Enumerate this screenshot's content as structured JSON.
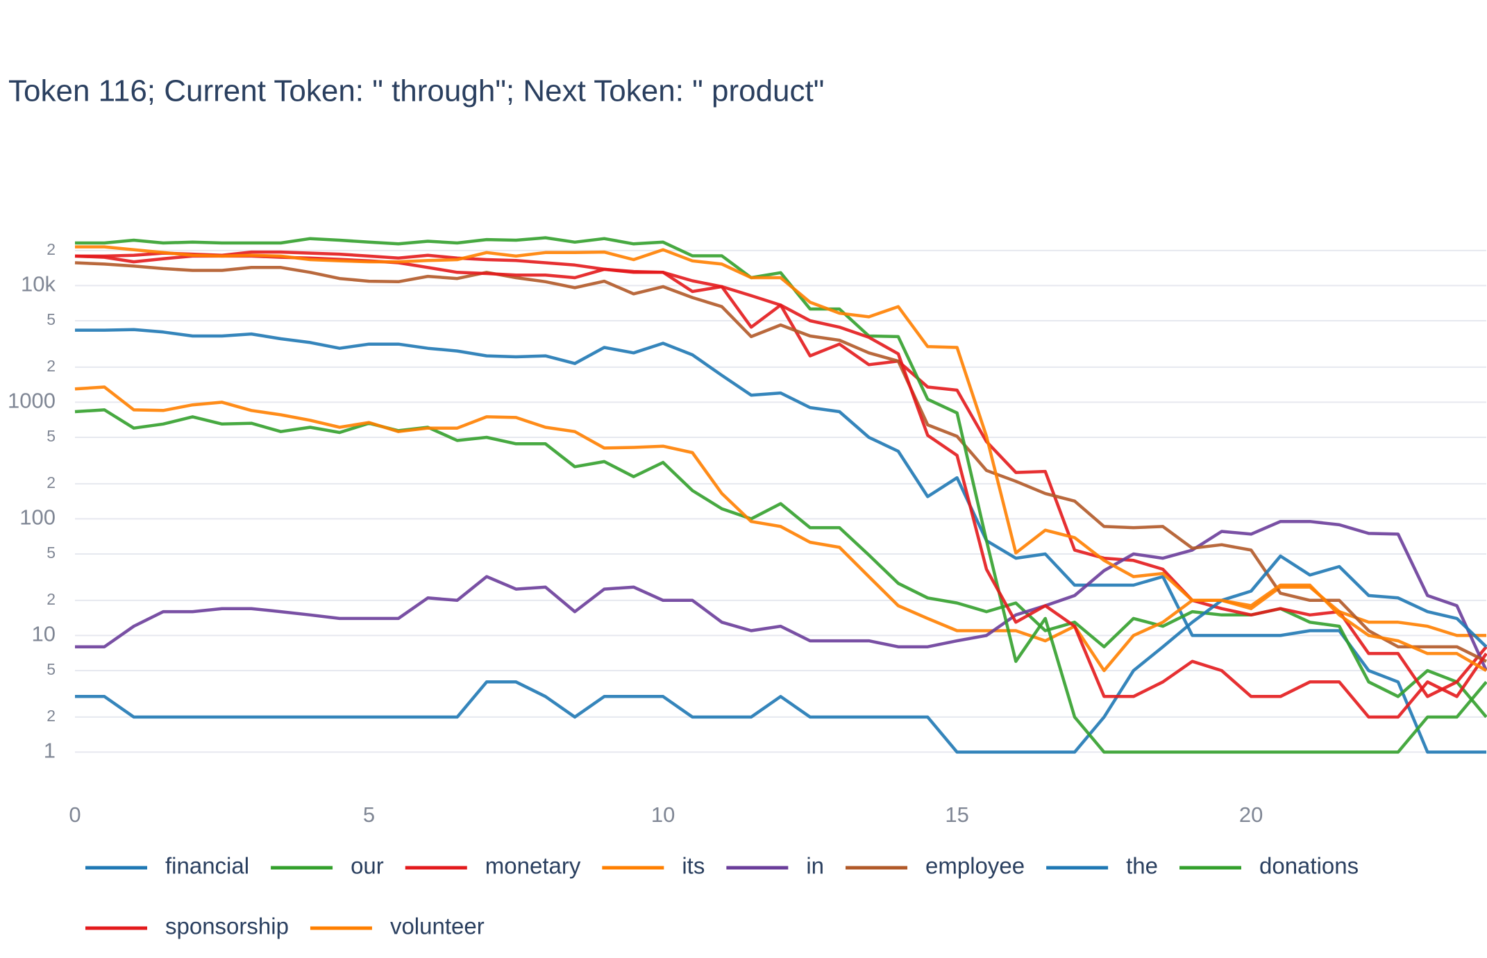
{
  "chart_data": {
    "type": "line",
    "title": "Token 116; Current Token: \" through\"; Next Token: \" product\"",
    "ylog": true,
    "grid": true,
    "legend": "bottom",
    "xlim": [
      0,
      24
    ],
    "xticks": [
      0,
      5,
      10,
      15,
      20
    ],
    "ylim": [
      0.5,
      38000
    ],
    "yticks": [
      1,
      2,
      {
        "value": 5,
        "label": "5"
      },
      10,
      {
        "value": 20,
        "label": "2"
      },
      {
        "value": 50,
        "label": "5"
      },
      100,
      {
        "value": 200,
        "label": "2"
      },
      {
        "value": 500,
        "label": "5"
      },
      1000,
      {
        "value": 2000,
        "label": "2"
      },
      {
        "value": 5000,
        "label": "5"
      },
      {
        "value": 10000,
        "label": "10k"
      },
      {
        "value": 20000,
        "label": "2"
      }
    ],
    "x": [
      0,
      0.5,
      1,
      1.5,
      2,
      2.5,
      3,
      3.5,
      4,
      4.5,
      5,
      5.5,
      6,
      6.5,
      7,
      7.5,
      8,
      8.5,
      9,
      9.5,
      10,
      10.5,
      11,
      11.5,
      12,
      12.5,
      13,
      13.5,
      14,
      14.5,
      15,
      15.5,
      16,
      16.5,
      17,
      17.5,
      18,
      18.5,
      19,
      19.5,
      20,
      20.5,
      21,
      21.5,
      22,
      22.5,
      23,
      23.5,
      24
    ],
    "series": [
      {
        "name": "financial",
        "color": "#1f78b4",
        "values": [
          4150,
          4150,
          4200,
          4000,
          3700,
          3700,
          3850,
          3500,
          3250,
          2900,
          3150,
          3150,
          2900,
          2750,
          2500,
          2450,
          2500,
          2150,
          2950,
          2650,
          3200,
          2550,
          1700,
          1150,
          1200,
          900,
          830,
          500,
          380,
          155,
          225,
          65,
          46,
          50,
          27,
          27,
          27,
          32,
          10,
          10,
          10,
          10,
          11,
          11,
          5,
          4,
          1,
          1,
          1
        ]
      },
      {
        "name": "our",
        "color": "#33a02c",
        "values": [
          830,
          860,
          600,
          650,
          750,
          650,
          660,
          560,
          610,
          550,
          660,
          570,
          610,
          470,
          500,
          440,
          440,
          280,
          310,
          230,
          305,
          175,
          122,
          100,
          135,
          84,
          84,
          49,
          28,
          21,
          19,
          16,
          19,
          11,
          13,
          8,
          14,
          12,
          16,
          15,
          15,
          17,
          13,
          12,
          4,
          3,
          5,
          4,
          2
        ]
      },
      {
        "name": "monetary",
        "color": "#e31a1c",
        "values": [
          17900,
          17900,
          18200,
          19000,
          18600,
          18200,
          19400,
          19400,
          19000,
          18600,
          17900,
          17200,
          18200,
          17200,
          16700,
          16400,
          15700,
          15000,
          13800,
          13200,
          13000,
          8900,
          9800,
          4400,
          6800,
          2500,
          3150,
          2100,
          2250,
          1350,
          1270,
          460,
          250,
          255,
          54,
          46,
          44,
          37,
          20,
          17,
          15,
          17,
          15,
          16,
          7,
          7,
          3,
          4,
          8
        ]
      },
      {
        "name": "its",
        "color": "#ff7f00",
        "values": [
          1300,
          1350,
          860,
          850,
          950,
          1000,
          850,
          780,
          700,
          610,
          670,
          560,
          600,
          600,
          750,
          740,
          610,
          560,
          405,
          410,
          420,
          370,
          165,
          95,
          86,
          63,
          57,
          32,
          18,
          14,
          11,
          11,
          11,
          9,
          12,
          5,
          10,
          13,
          20,
          20,
          17,
          26,
          26,
          16,
          13,
          13,
          12,
          10,
          10
        ]
      },
      {
        "name": "in",
        "color": "#6a3d9a",
        "values": [
          8,
          8,
          12,
          16,
          16,
          17,
          17,
          16,
          15,
          14,
          14,
          14,
          21,
          20,
          32,
          25,
          26,
          16,
          25,
          26,
          20,
          20,
          13,
          11,
          12,
          9,
          9,
          9,
          8,
          8,
          9,
          10,
          15,
          18,
          22,
          36,
          50,
          46,
          54,
          78,
          74,
          95,
          95,
          89,
          75,
          74,
          22,
          18,
          5
        ]
      },
      {
        "name": "employee",
        "color": "#b15928",
        "values": [
          15700,
          15300,
          14700,
          14000,
          13500,
          13500,
          14300,
          14300,
          13000,
          11500,
          10900,
          10800,
          12000,
          11500,
          13000,
          11700,
          10800,
          9600,
          10900,
          8500,
          9800,
          7900,
          6600,
          3650,
          4600,
          3700,
          3400,
          2650,
          2250,
          640,
          510,
          260,
          210,
          165,
          142,
          86,
          84,
          86,
          56,
          60,
          54,
          23,
          20,
          20,
          11,
          8,
          8,
          8,
          6
        ]
      },
      {
        "name": "the",
        "color": "#1f78b4",
        "values": [
          3,
          3,
          2,
          2,
          2,
          2,
          2,
          2,
          2,
          2,
          2,
          2,
          2,
          2,
          4,
          4,
          3,
          2,
          3,
          3,
          3,
          2,
          2,
          2,
          3,
          2,
          2,
          2,
          2,
          2,
          1,
          1,
          1,
          1,
          1,
          2,
          5,
          8,
          13,
          20,
          24,
          48,
          33,
          39,
          22,
          21,
          16,
          14,
          8
        ]
      },
      {
        "name": "donations",
        "color": "#33a02c",
        "values": [
          23200,
          23200,
          24500,
          23200,
          23600,
          23200,
          23200,
          23200,
          25300,
          24500,
          23600,
          22800,
          24000,
          23200,
          24800,
          24500,
          25700,
          23600,
          25300,
          22800,
          23600,
          18000,
          18000,
          11700,
          12900,
          6300,
          6300,
          3700,
          3650,
          1060,
          810,
          65,
          6,
          14,
          2,
          1,
          1,
          1,
          1,
          1,
          1,
          1,
          1,
          1,
          1,
          1,
          2,
          2,
          4
        ]
      },
      {
        "name": "sponsorship",
        "color": "#e31a1c",
        "values": [
          17900,
          17500,
          16000,
          17000,
          17900,
          17900,
          17900,
          17500,
          17200,
          16800,
          16300,
          15700,
          14300,
          13000,
          12700,
          12300,
          12300,
          11700,
          13800,
          13000,
          13000,
          11000,
          9800,
          8200,
          6800,
          5000,
          4400,
          3600,
          2600,
          520,
          350,
          37,
          13,
          18,
          12,
          3,
          3,
          4,
          6,
          5,
          3,
          3,
          4,
          4,
          2,
          2,
          4,
          3,
          7
        ]
      },
      {
        "name": "volunteer",
        "color": "#ff7f00",
        "values": [
          21500,
          21500,
          20300,
          19200,
          18200,
          17900,
          18200,
          17900,
          16700,
          16300,
          16000,
          16000,
          16400,
          16700,
          19200,
          17900,
          19200,
          19200,
          19400,
          16700,
          20300,
          16300,
          15300,
          11700,
          11700,
          7200,
          5800,
          5400,
          6600,
          3000,
          2950,
          510,
          51,
          80,
          69,
          44,
          32,
          34,
          20,
          20,
          18,
          27,
          27,
          15,
          10,
          9,
          7,
          7,
          5
        ]
      }
    ]
  }
}
